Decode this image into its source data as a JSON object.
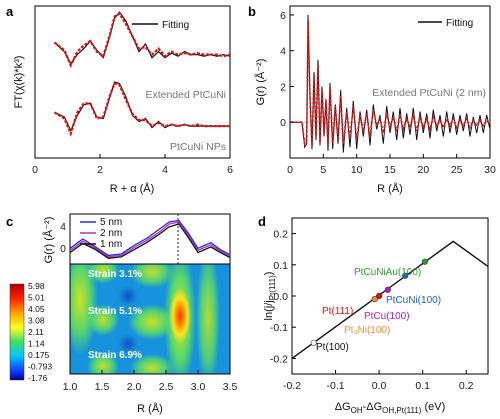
{
  "panels": {
    "a": {
      "letter": "a",
      "legend": "Fitting",
      "ylabel": "FT(χ(k)*k³)",
      "xlabel": "R + α (Å)",
      "xticks": [
        "0",
        "2",
        "4",
        "6"
      ],
      "label_top": "Extended PtCuNi",
      "label_bottom": "PtCuNi NPs"
    },
    "b": {
      "letter": "b",
      "legend": "Fitting",
      "ylabel": "G(r) (Å⁻²)",
      "xlabel": "R (Å)",
      "xticks": [
        "0",
        "5",
        "10",
        "15",
        "20",
        "25",
        "30"
      ],
      "yticks": [
        "0",
        "2",
        "4",
        "6"
      ],
      "label": "Extended PtCuNi (2 nm)"
    },
    "c": {
      "letter": "c",
      "ylabel_top": "G(r) (Å⁻²)",
      "yticks_top": [
        "0",
        "4"
      ],
      "legend": [
        "5 nm",
        "2 nm",
        "1 nm"
      ],
      "colorbar": [
        "5.98",
        "5.01",
        "4.05",
        "3.08",
        "2.11",
        "1.14",
        "0.175",
        "-0.793",
        "-1.76"
      ],
      "strain_labels": [
        "Strain 3.1%",
        "Strain 5.1%",
        "Strain 6.9%"
      ],
      "xlabel": "R (Å)",
      "xticks": [
        "1.0",
        "1.5",
        "2.0",
        "2.5",
        "3.0",
        "3.5"
      ]
    },
    "d": {
      "letter": "d",
      "ylabel": "ln(j/j",
      "ylabel_sub": "Pt(111)",
      "ylabel_end": ")",
      "xlabel_main": "ΔG",
      "xlabel_sub1": "OH",
      "xlabel_mid": "-ΔG",
      "xlabel_sub2": "OH,Pt(111)",
      "xlabel_unit": " (eV)",
      "xticks": [
        "-0.2",
        "-0.1",
        "0.0",
        "0.1",
        "0.2"
      ],
      "yticks": [
        "-0.2",
        "-0.1",
        "0.0",
        "0.1",
        "0.2"
      ],
      "point_labels": [
        "PtCuNiAu(100)",
        "PtCuNi(100)",
        "Pt(111)",
        "PtCu(100)",
        "Pt₃Ni(100)",
        "Pt(100)"
      ]
    }
  },
  "chart_data": [
    {
      "type": "line",
      "panel": "a",
      "xlabel": "R + α (Å)",
      "ylabel": "FT(χ(k)*k³)",
      "xlim": [
        0,
        6
      ],
      "series": [
        {
          "name": "Fitting",
          "role": "fit",
          "color": "#111111",
          "x": [
            0.6,
            0.9,
            1.1,
            1.3,
            1.5,
            1.7,
            1.9,
            2.1,
            2.3,
            2.45,
            2.6,
            2.8,
            3.0,
            3.2,
            3.4,
            3.6,
            3.8,
            4.0,
            4.2,
            4.4,
            4.6,
            4.8,
            5.0,
            5.2,
            5.4,
            5.6,
            5.8,
            6.0
          ],
          "y": [
            0.76,
            0.7,
            0.62,
            0.68,
            0.72,
            0.77,
            0.71,
            0.66,
            0.8,
            0.92,
            0.96,
            0.9,
            0.8,
            0.7,
            0.75,
            0.66,
            0.7,
            0.66,
            0.69,
            0.67,
            0.7,
            0.68,
            0.68,
            0.67,
            0.68,
            0.67,
            0.68,
            0.67
          ]
        },
        {
          "name": "Extended PtCuNi",
          "role": "data",
          "color": "#d01818",
          "x": [
            0.6,
            0.9,
            1.1,
            1.3,
            1.5,
            1.7,
            1.9,
            2.1,
            2.3,
            2.45,
            2.6,
            2.8,
            3.0,
            3.2,
            3.4,
            3.6,
            3.8,
            4.0,
            4.2,
            4.4,
            4.6,
            4.8,
            5.0,
            5.2,
            5.4,
            5.6,
            5.8,
            6.0
          ],
          "y": [
            0.76,
            0.71,
            0.61,
            0.7,
            0.74,
            0.77,
            0.7,
            0.67,
            0.81,
            0.93,
            0.95,
            0.88,
            0.8,
            0.72,
            0.73,
            0.68,
            0.72,
            0.67,
            0.7,
            0.68,
            0.69,
            0.68,
            0.69,
            0.68,
            0.68,
            0.68,
            0.67,
            0.68
          ]
        },
        {
          "name": "Fitting",
          "role": "fit",
          "color": "#111111",
          "x": [
            0.6,
            0.9,
            1.1,
            1.3,
            1.5,
            1.7,
            1.9,
            2.1,
            2.3,
            2.45,
            2.6,
            2.8,
            3.0,
            3.2,
            3.4,
            3.6,
            3.8,
            4.0,
            4.2,
            4.4,
            4.6,
            4.8,
            5.0,
            5.2,
            5.4,
            5.6,
            5.8,
            6.0
          ],
          "y": [
            0.3,
            0.27,
            0.18,
            0.28,
            0.35,
            0.36,
            0.27,
            0.26,
            0.4,
            0.5,
            0.49,
            0.4,
            0.28,
            0.24,
            0.26,
            0.2,
            0.24,
            0.2,
            0.22,
            0.21,
            0.22,
            0.21,
            0.21,
            0.21,
            0.21,
            0.21,
            0.21,
            0.21
          ]
        },
        {
          "name": "PtCuNi NPs",
          "role": "data",
          "color": "#d01818",
          "x": [
            0.6,
            0.9,
            1.1,
            1.3,
            1.5,
            1.7,
            1.9,
            2.1,
            2.3,
            2.45,
            2.6,
            2.8,
            3.0,
            3.2,
            3.4,
            3.6,
            3.8,
            4.0,
            4.2,
            4.4,
            4.6,
            4.8,
            5.0,
            5.2,
            5.4,
            5.6,
            5.8,
            6.0
          ],
          "y": [
            0.3,
            0.26,
            0.16,
            0.3,
            0.36,
            0.36,
            0.26,
            0.27,
            0.41,
            0.49,
            0.48,
            0.38,
            0.29,
            0.25,
            0.25,
            0.21,
            0.23,
            0.21,
            0.22,
            0.21,
            0.22,
            0.21,
            0.22,
            0.21,
            0.21,
            0.21,
            0.21,
            0.21
          ]
        }
      ]
    },
    {
      "type": "line",
      "panel": "b",
      "xlabel": "R (Å)",
      "ylabel": "G(r) (Å⁻²)",
      "xlim": [
        0,
        30
      ],
      "ylim": [
        -2,
        6.5
      ],
      "series": [
        {
          "name": "Fitting",
          "role": "fit",
          "color": "#111111",
          "x": [
            0,
            1.8,
            2.2,
            2.5,
            2.7,
            3.0,
            3.3,
            3.6,
            3.9,
            4.2,
            4.5,
            4.8,
            5.1,
            5.4,
            5.7,
            6.0,
            6.4,
            6.8,
            7.2,
            7.6,
            8.0,
            8.5,
            9.0,
            9.5,
            10.0,
            10.5,
            11.0,
            11.5,
            12.0,
            12.5,
            13.0,
            13.5,
            14.0,
            14.5,
            15.0,
            15.5,
            16.0,
            16.5,
            17.0,
            17.5,
            18.0,
            18.5,
            19.0,
            19.5,
            20.0,
            20.5,
            21.0,
            21.5,
            22.0,
            22.5,
            23.0,
            23.5,
            24.0,
            24.5,
            25.0,
            25.5,
            26.0,
            26.5,
            27.0,
            27.5,
            28.0,
            28.5,
            29.0,
            29.5,
            30.0
          ],
          "y": [
            0,
            0.0,
            -1.4,
            -1.2,
            6.0,
            1.5,
            -1.5,
            2.8,
            -1.0,
            3.5,
            -1.3,
            2.0,
            -0.8,
            1.3,
            -1.6,
            2.2,
            -1.5,
            1.0,
            -1.2,
            1.8,
            -1.7,
            0.8,
            -1.4,
            1.2,
            -1.5,
            0.6,
            -0.8,
            0.7,
            -1.3,
            1.0,
            -0.4,
            0.4,
            -1.2,
            0.9,
            -0.6,
            0.6,
            -1.0,
            0.8,
            -0.9,
            0.5,
            -0.7,
            0.8,
            -1.0,
            0.6,
            -0.6,
            0.5,
            -0.9,
            0.7,
            -0.5,
            0.4,
            -0.8,
            0.6,
            -0.6,
            0.5,
            -0.7,
            0.4,
            -0.5,
            0.5,
            -0.8,
            0.3,
            -0.6,
            0.4,
            -0.6,
            0.4,
            -0.4
          ]
        },
        {
          "name": "Extended PtCuNi (2 nm)",
          "role": "data",
          "color": "#d01818",
          "x": [
            0,
            1.8,
            2.2,
            2.5,
            2.7,
            3.0,
            3.3,
            3.6,
            3.9,
            4.2,
            4.5,
            4.8,
            5.1,
            5.4,
            5.7,
            6.0,
            6.4,
            6.8,
            7.2,
            7.6,
            8.0,
            8.5,
            9.0,
            9.5,
            10.0,
            10.5,
            11.0,
            11.5,
            12.0,
            12.5,
            13.0,
            13.5,
            14.0,
            14.5,
            15.0,
            15.5,
            16.0,
            16.5,
            17.0,
            17.5,
            18.0,
            18.5,
            19.0,
            19.5,
            20.0,
            20.5,
            21.0,
            21.5,
            22.0,
            22.5,
            23.0,
            23.5,
            24.0,
            24.5,
            25.0,
            25.5,
            26.0,
            26.5,
            27.0,
            27.5,
            28.0,
            28.5,
            29.0,
            29.5,
            30.0
          ],
          "y": [
            0,
            0.0,
            -1.2,
            -1.0,
            5.7,
            1.3,
            -1.3,
            2.6,
            -0.8,
            3.2,
            -1.1,
            1.8,
            -0.6,
            1.2,
            -1.3,
            2.0,
            -1.2,
            0.9,
            -1.0,
            1.5,
            -1.2,
            0.6,
            -0.9,
            0.9,
            -1.0,
            0.4,
            -0.5,
            0.5,
            -0.8,
            0.7,
            -0.2,
            0.2,
            -0.6,
            0.5,
            -0.3,
            0.3,
            -0.5,
            0.4,
            -0.4,
            0.2,
            -0.3,
            0.4,
            -0.5,
            0.3,
            -0.3,
            0.2,
            -0.4,
            0.3,
            -0.2,
            0.1,
            -0.3,
            0.2,
            -0.2,
            0.2,
            -0.3,
            0.1,
            -0.2,
            0.2,
            -0.3,
            0.1,
            -0.2,
            0.1,
            -0.2,
            0.1,
            -0.1
          ]
        }
      ]
    },
    {
      "type": "line",
      "panel": "c-top",
      "ylabel": "G(r) (Å⁻²)",
      "xlim": [
        1.0,
        3.5
      ],
      "ylim": [
        -1,
        6
      ],
      "series": [
        {
          "name": "5 nm",
          "color": "#2a2ae0",
          "x": [
            1.0,
            1.2,
            1.4,
            1.6,
            1.8,
            2.0,
            2.2,
            2.4,
            2.55,
            2.7,
            2.85,
            3.0,
            3.2,
            3.35,
            3.5
          ],
          "y": [
            1.2,
            2.5,
            1.4,
            0.2,
            0.4,
            1.6,
            2.6,
            3.9,
            4.9,
            5.1,
            3.3,
            1.2,
            2.0,
            1.0,
            0.3
          ]
        },
        {
          "name": "2 nm",
          "color": "#b030b0",
          "x": [
            1.0,
            1.2,
            1.4,
            1.6,
            1.8,
            2.0,
            2.2,
            2.4,
            2.55,
            2.7,
            2.85,
            3.0,
            3.2,
            3.35,
            3.5
          ],
          "y": [
            0.9,
            2.2,
            1.2,
            0.0,
            0.2,
            1.3,
            2.3,
            3.5,
            4.6,
            4.9,
            3.0,
            0.9,
            1.7,
            0.8,
            0.1
          ]
        },
        {
          "name": "1 nm",
          "color": "#111111",
          "x": [
            1.0,
            1.2,
            1.4,
            1.6,
            1.8,
            2.0,
            2.2,
            2.4,
            2.55,
            2.7,
            2.85,
            3.0,
            3.2,
            3.35,
            3.5
          ],
          "y": [
            0.6,
            1.9,
            1.0,
            -0.2,
            0.0,
            1.0,
            2.0,
            3.2,
            4.2,
            4.6,
            2.7,
            0.6,
            1.4,
            0.6,
            -0.1
          ]
        }
      ]
    },
    {
      "type": "heatmap",
      "panel": "c-bottom",
      "xlabel": "R (Å)",
      "xlim": [
        1.0,
        3.5
      ],
      "colorbar_range": [
        -1.76,
        5.98
      ],
      "annotations": [
        "Strain 3.1%",
        "Strain 5.1%",
        "Strain 6.9%"
      ]
    },
    {
      "type": "scatter",
      "panel": "d",
      "xlabel": "ΔG_OH-ΔG_OH,Pt(111) (eV)",
      "ylabel": "ln(j/j_Pt(111))",
      "xlim": [
        -0.2,
        0.25
      ],
      "ylim": [
        -0.25,
        0.25
      ],
      "line": {
        "x": [
          -0.2,
          0.17,
          0.25
        ],
        "y": [
          -0.2,
          0.175,
          0.095
        ]
      },
      "points": [
        {
          "label": "PtCuNiAu(100)",
          "x": 0.105,
          "y": 0.11,
          "color": "#2aa02a"
        },
        {
          "label": "PtCuNi(100)",
          "x": 0.06,
          "y": 0.065,
          "color": "#2060d0"
        },
        {
          "label": "Pt(111)",
          "x": 0.0,
          "y": 0.0,
          "color": "#e01010"
        },
        {
          "label": "PtCu(100)",
          "x": 0.02,
          "y": 0.02,
          "color": "#b020c0"
        },
        {
          "label": "Pt₃Ni(100)",
          "x": -0.01,
          "y": -0.01,
          "color": "#f09030"
        },
        {
          "label": "Pt(100)",
          "x": -0.15,
          "y": -0.15,
          "color": "#ffffff"
        }
      ]
    }
  ]
}
